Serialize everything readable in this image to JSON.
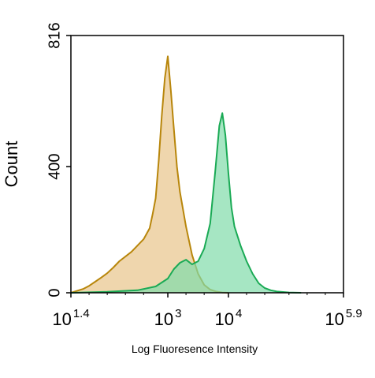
{
  "chart_data": {
    "type": "area",
    "title": "",
    "xlabel": "Log Fluoresence Intensity",
    "ylabel": "Count",
    "x_scale": "log",
    "xlim_log10": [
      1.4,
      5.9
    ],
    "ylim": [
      0,
      816
    ],
    "x_ticks": [
      {
        "base": "10",
        "exp": "1.4",
        "log10": 1.4
      },
      {
        "base": "10",
        "exp": "3",
        "log10": 3.0
      },
      {
        "base": "10",
        "exp": "4",
        "log10": 4.0
      },
      {
        "base": "10",
        "exp": "5.9",
        "log10": 5.9
      }
    ],
    "y_ticks": [
      {
        "label": "0",
        "value": 0
      },
      {
        "label": "400",
        "value": 400
      },
      {
        "label": "816",
        "value": 816
      }
    ],
    "grid": false,
    "series": [
      {
        "color": "#b8860b",
        "fill": "#e8c48a",
        "points": [
          [
            1.4,
            0
          ],
          [
            1.5,
            6
          ],
          [
            1.6,
            12
          ],
          [
            1.7,
            22
          ],
          [
            1.8,
            35
          ],
          [
            1.9,
            48
          ],
          [
            2.0,
            62
          ],
          [
            2.1,
            80
          ],
          [
            2.2,
            100
          ],
          [
            2.3,
            115
          ],
          [
            2.4,
            130
          ],
          [
            2.5,
            150
          ],
          [
            2.6,
            170
          ],
          [
            2.7,
            205
          ],
          [
            2.75,
            250
          ],
          [
            2.8,
            300
          ],
          [
            2.85,
            420
          ],
          [
            2.9,
            560
          ],
          [
            2.95,
            680
          ],
          [
            3.0,
            750
          ],
          [
            3.05,
            640
          ],
          [
            3.1,
            520
          ],
          [
            3.15,
            400
          ],
          [
            3.2,
            320
          ],
          [
            3.3,
            210
          ],
          [
            3.4,
            120
          ],
          [
            3.5,
            60
          ],
          [
            3.6,
            25
          ],
          [
            3.7,
            10
          ],
          [
            3.8,
            4
          ],
          [
            3.9,
            1
          ],
          [
            4.0,
            0
          ]
        ]
      },
      {
        "color": "#1aaa55",
        "fill": "#80dcaa",
        "points": [
          [
            1.4,
            0
          ],
          [
            2.0,
            3
          ],
          [
            2.5,
            8
          ],
          [
            2.8,
            20
          ],
          [
            3.0,
            45
          ],
          [
            3.1,
            75
          ],
          [
            3.2,
            95
          ],
          [
            3.3,
            105
          ],
          [
            3.4,
            90
          ],
          [
            3.5,
            100
          ],
          [
            3.6,
            140
          ],
          [
            3.7,
            220
          ],
          [
            3.78,
            380
          ],
          [
            3.85,
            530
          ],
          [
            3.9,
            570
          ],
          [
            3.95,
            500
          ],
          [
            4.0,
            380
          ],
          [
            4.05,
            270
          ],
          [
            4.1,
            210
          ],
          [
            4.2,
            150
          ],
          [
            4.3,
            100
          ],
          [
            4.4,
            60
          ],
          [
            4.5,
            30
          ],
          [
            4.6,
            15
          ],
          [
            4.7,
            8
          ],
          [
            4.8,
            4
          ],
          [
            5.0,
            1
          ],
          [
            5.2,
            0
          ]
        ]
      }
    ]
  }
}
